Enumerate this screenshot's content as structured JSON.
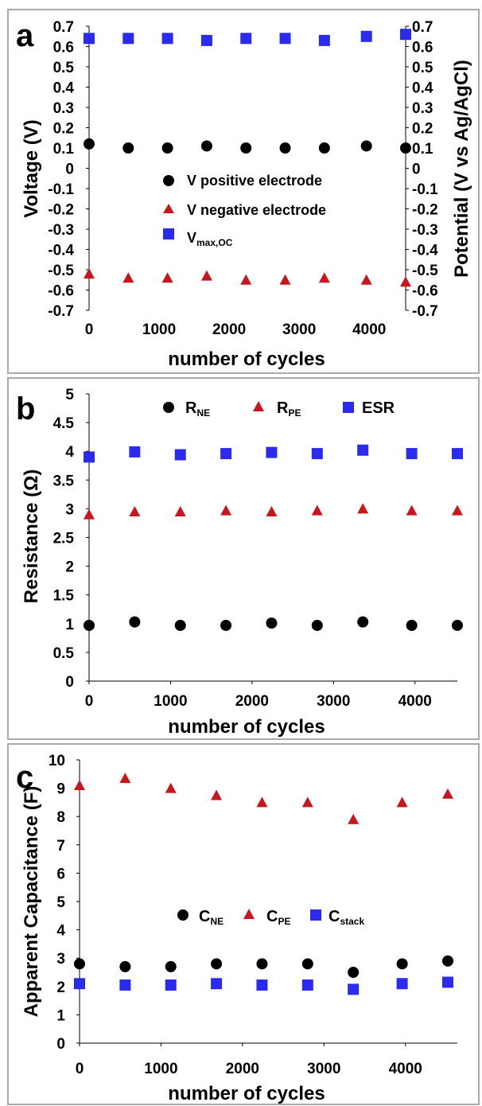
{
  "colors": {
    "black": "#000000",
    "red": "#c8161d",
    "blue": "#2b2bf0",
    "frame": "#a9a9a9"
  },
  "chart_data": [
    {
      "panel": "a",
      "type": "scatter",
      "x": [
        0,
        560,
        1120,
        1680,
        2240,
        2800,
        3360,
        3960,
        4520
      ],
      "series": [
        {
          "key": "v_pos",
          "name": "V positive electrode",
          "marker": "circle",
          "color": "#000000",
          "values": [
            0.12,
            0.1,
            0.1,
            0.11,
            0.1,
            0.1,
            0.1,
            0.11,
            0.1
          ]
        },
        {
          "key": "v_neg",
          "name": "V negative electrode",
          "marker": "triangle",
          "color": "#c8161d",
          "values": [
            -0.52,
            -0.54,
            -0.54,
            -0.53,
            -0.55,
            -0.55,
            -0.54,
            -0.55,
            -0.56
          ]
        },
        {
          "key": "v_max",
          "name": "V",
          "name_sub": "max,OC",
          "marker": "square",
          "color": "#2b2bf0",
          "values": [
            0.64,
            0.64,
            0.64,
            0.63,
            0.64,
            0.64,
            0.63,
            0.65,
            0.66
          ]
        }
      ],
      "xlabel": "number of cycles",
      "ylabel": "Voltage (V)",
      "y2label": "Potential (V vs Ag/AgCl)",
      "xlim": [
        0,
        4520
      ],
      "ylim": [
        -0.7,
        0.7
      ],
      "xticks": [
        "0",
        "1000",
        "2000",
        "3000",
        "4000"
      ],
      "xtick_values": [
        0,
        1000,
        2000,
        3000,
        4000
      ],
      "yticks": [
        "0.7",
        "0.6",
        "0.5",
        "0.4",
        "0.3",
        "0.2",
        "0.1",
        "0",
        "-0.1",
        "-0.2",
        "-0.3",
        "-0.4",
        "-0.5",
        "-0.6",
        "-0.7"
      ],
      "ytick_values": [
        0.7,
        0.6,
        0.5,
        0.4,
        0.3,
        0.2,
        0.1,
        0,
        -0.1,
        -0.2,
        -0.3,
        -0.4,
        -0.5,
        -0.6,
        -0.7
      ],
      "grid": false,
      "legend": "center"
    },
    {
      "panel": "b",
      "type": "scatter",
      "x": [
        0,
        560,
        1120,
        1680,
        2240,
        2800,
        3360,
        3960,
        4520
      ],
      "series": [
        {
          "key": "r_ne",
          "name": "R",
          "name_sub": "NE",
          "marker": "circle",
          "color": "#000000",
          "values": [
            0.97,
            1.03,
            0.97,
            0.97,
            1.01,
            0.97,
            1.03,
            0.97,
            0.97
          ]
        },
        {
          "key": "r_pe",
          "name": "R",
          "name_sub": "PE",
          "marker": "triangle",
          "color": "#c8161d",
          "values": [
            2.9,
            2.95,
            2.95,
            2.97,
            2.95,
            2.97,
            3.0,
            2.97,
            2.97
          ]
        },
        {
          "key": "esr",
          "name": "ESR",
          "marker": "square",
          "color": "#2b2bf0",
          "values": [
            3.9,
            3.99,
            3.94,
            3.96,
            3.98,
            3.96,
            4.02,
            3.96,
            3.96
          ]
        }
      ],
      "xlabel": "number of cycles",
      "ylabel": "Resistance (Ω)",
      "xlim": [
        0,
        4520
      ],
      "ylim": [
        0,
        5
      ],
      "xticks": [
        "0",
        "1000",
        "2000",
        "3000",
        "4000"
      ],
      "xtick_values": [
        0,
        1000,
        2000,
        3000,
        4000
      ],
      "yticks": [
        "5",
        "4.5",
        "4",
        "3.5",
        "3",
        "2.5",
        "2",
        "1.5",
        "1",
        "0.5",
        "0"
      ],
      "ytick_values": [
        5,
        4.5,
        4,
        3.5,
        3,
        2.5,
        2,
        1.5,
        1,
        0.5,
        0
      ],
      "grid": false,
      "legend": "top"
    },
    {
      "panel": "c",
      "type": "scatter",
      "x": [
        0,
        560,
        1120,
        1680,
        2240,
        2800,
        3360,
        3960,
        4520
      ],
      "series": [
        {
          "key": "c_ne",
          "name": "C",
          "name_sub": "NE",
          "marker": "circle",
          "color": "#000000",
          "values": [
            2.8,
            2.7,
            2.7,
            2.8,
            2.8,
            2.8,
            2.5,
            2.8,
            2.9
          ]
        },
        {
          "key": "c_pe",
          "name": "C",
          "name_sub": "PE",
          "marker": "triangle",
          "color": "#c8161d",
          "values": [
            9.1,
            9.35,
            9.0,
            8.75,
            8.5,
            8.5,
            7.9,
            8.5,
            8.8
          ]
        },
        {
          "key": "c_stack",
          "name": "C",
          "name_sub": "stack",
          "marker": "square",
          "color": "#2b2bf0",
          "values": [
            2.1,
            2.05,
            2.05,
            2.1,
            2.05,
            2.05,
            1.9,
            2.1,
            2.15
          ]
        }
      ],
      "xlabel": "number of cycles",
      "ylabel": "Apparent Capacitance (F)",
      "xlim": [
        0,
        4520
      ],
      "ylim": [
        0,
        10
      ],
      "xticks": [
        "0",
        "1000",
        "2000",
        "3000",
        "4000"
      ],
      "xtick_values": [
        0,
        1000,
        2000,
        3000,
        4000
      ],
      "yticks": [
        "10",
        "9",
        "8",
        "7",
        "6",
        "5",
        "4",
        "3",
        "2",
        "1",
        "0"
      ],
      "ytick_values": [
        10,
        9,
        8,
        7,
        6,
        5,
        4,
        3,
        2,
        1,
        0
      ],
      "grid": false,
      "legend": "center"
    }
  ]
}
